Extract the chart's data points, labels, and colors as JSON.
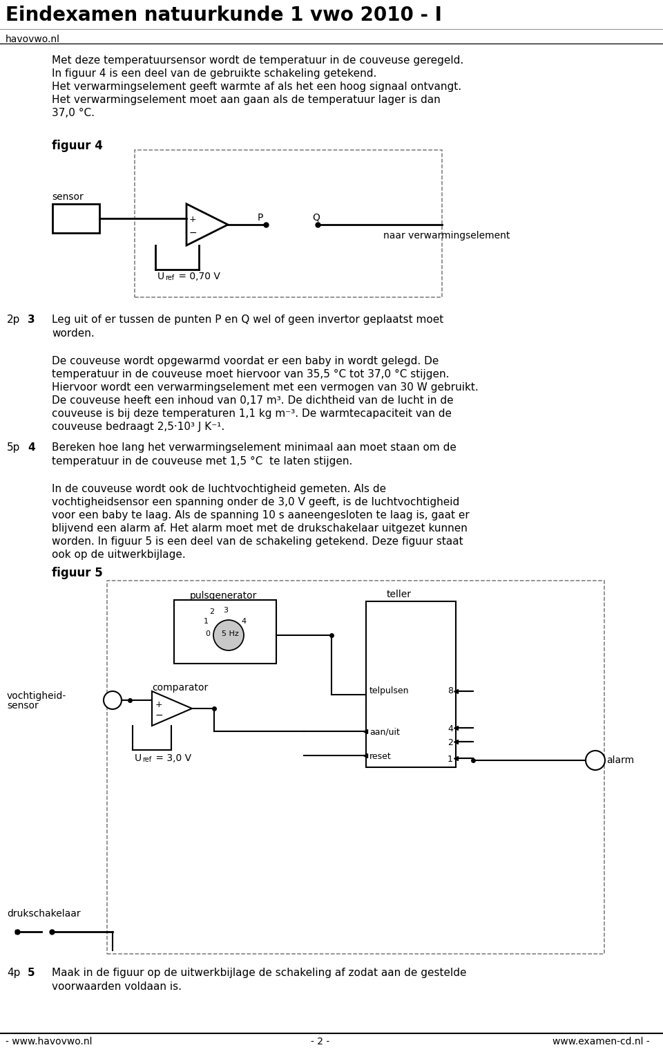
{
  "title": "Eindexamen natuurkunde 1 vwo 2010 - I",
  "subtitle": "havovwo.nl",
  "body_text": [
    "Met deze temperatuursensor wordt de temperatuur in de couveuse geregeld.",
    "In figuur 4 is een deel van de gebruikte schakeling getekend.",
    "Het verwarmingselement geeft warmte af als het een hoog signaal ontvangt.",
    "Het verwarmingselement moet aan gaan als de temperatuur lager is dan",
    "37,0 °C."
  ],
  "figuur4_label": "figuur 4",
  "sensor_label": "sensor",
  "P_label": "P",
  "Q_label": "Q",
  "naar_label": "naar verwarmingselement",
  "para1": [
    "De couveuse wordt opgewarmd voordat er een baby in wordt gelegd. De",
    "temperatuur in de couveuse moet hiervoor van 35,5 °C tot 37,0 °C stijgen.",
    "Hiervoor wordt een verwarmingselement met een vermogen van 30 W gebruikt.",
    "De couveuse heeft een inhoud van 0,17 m³. De dichtheid van de lucht in de",
    "couveuse is bij deze temperaturen 1,1 kg m⁻³. De warmtecapaciteit van de",
    "couveuse bedraagt 2,5·10³ J K⁻¹."
  ],
  "para2": [
    "In de couveuse wordt ook de luchtvochtigheid gemeten. Als de",
    "vochtigheidsensor een spanning onder de 3,0 V geeft, is de luchtvochtigheid",
    "voor een baby te laag. Als de spanning 10 s aaneengesloten te laag is, gaat er",
    "blijvend een alarm af. Het alarm moet met de drukschakelaar uitgezet kunnen",
    "worden. In figuur 5 is een deel van de schakeling getekend. Deze figuur staat",
    "ook op de uitwerkbijlage."
  ],
  "figuur5_label": "figuur 5",
  "footer_left": "- www.havovwo.nl",
  "footer_center": "- 2 -",
  "footer_right": "www.examen-cd.nl -",
  "bg_color": "#ffffff",
  "text_color": "#000000",
  "line_color": "#000000",
  "dash_color": "#777777",
  "title_fontsize": 20,
  "body_fontsize": 11,
  "label_fontsize": 10,
  "fig_width": 9.6,
  "fig_height": 15.35,
  "dpi": 100
}
